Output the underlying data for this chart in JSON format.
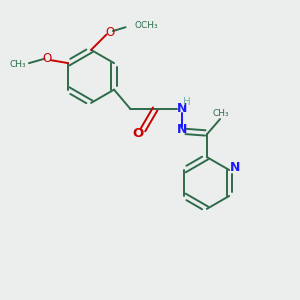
{
  "background_color": "#eceeed",
  "bond_color": "#2d6b4a",
  "oxygen_color": "#cc0000",
  "nitrogen_color": "#1a1aff",
  "nitrogen_h_color": "#7ab0b0",
  "figsize": [
    3.0,
    3.0
  ],
  "dpi": 100,
  "xlim": [
    0,
    10
  ],
  "ylim": [
    0,
    10
  ]
}
